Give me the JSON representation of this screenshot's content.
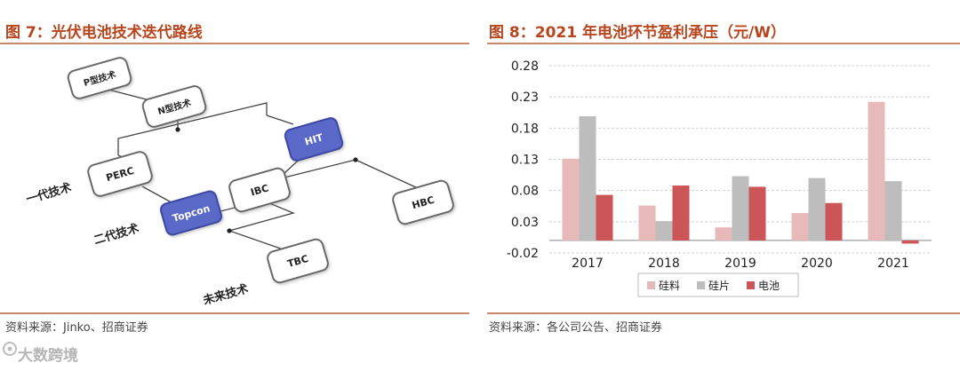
{
  "left": {
    "title": "图 7：光伏电池技术迭代路线",
    "source": "资料来源：Jinko、招商证券",
    "nodes": {
      "p": "P型技术",
      "n": "N型技术",
      "perc": "PERC",
      "hit": "HIT",
      "ibc": "IBC",
      "topcon": "Topcon",
      "hbc": "HBC",
      "tbc": "TBC"
    },
    "labels": {
      "gen1": "一代技术",
      "gen2": "二代技术",
      "future": "未来技术"
    }
  },
  "right": {
    "title": "图 8：2021 年电池环节盈利承压（元/W）",
    "source": "资料来源：各公司公告、招商证券"
  },
  "watermark": "大数跨境",
  "colors": {
    "title": "#b8451e",
    "node_fill": "#ffffff",
    "node_highlight": "#5a68c8",
    "silicon": "#e8b9b9",
    "wafer": "#bdbdbd",
    "cell": "#cc5557"
  },
  "chart_data": {
    "type": "bar",
    "title": "图 8：2021 年电池环节盈利承压（元/W）",
    "categories": [
      "2017",
      "2018",
      "2019",
      "2020",
      "2021"
    ],
    "series": [
      {
        "name": "硅料",
        "color": "#e8b9b9",
        "values": [
          0.131,
          0.056,
          0.021,
          0.044,
          0.222
        ]
      },
      {
        "name": "硅片",
        "color": "#bdbdbd",
        "values": [
          0.199,
          0.031,
          0.103,
          0.1,
          0.095
        ]
      },
      {
        "name": "电池",
        "color": "#cc5557",
        "values": [
          0.073,
          0.088,
          0.086,
          0.06,
          -0.005
        ]
      }
    ],
    "yticks": [
      "0.28",
      "0.23",
      "0.18",
      "0.13",
      "0.08",
      "0.03",
      "-0.02"
    ],
    "ylim": [
      -0.02,
      0.28
    ],
    "grid": true,
    "legend_position": "bottom"
  }
}
